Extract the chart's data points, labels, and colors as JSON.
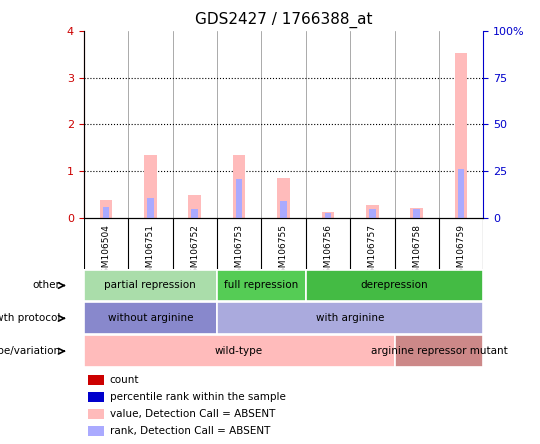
{
  "title": "GDS2427 / 1766388_at",
  "samples": [
    "GSM106504",
    "GSM106751",
    "GSM106752",
    "GSM106753",
    "GSM106755",
    "GSM106756",
    "GSM106757",
    "GSM106758",
    "GSM106759"
  ],
  "pink_bar_values": [
    0.38,
    1.35,
    0.48,
    1.35,
    0.85,
    0.12,
    0.28,
    0.2,
    3.52
  ],
  "blue_bar_values": [
    0.22,
    0.42,
    0.18,
    0.82,
    0.35,
    0.1,
    0.18,
    0.18,
    1.05
  ],
  "ylim_left": [
    0,
    4
  ],
  "ylim_right": [
    0,
    100
  ],
  "yticks_left": [
    0,
    1,
    2,
    3,
    4
  ],
  "yticks_right": [
    0,
    25,
    50,
    75,
    100
  ],
  "ytick_labels_right": [
    "0",
    "25",
    "50",
    "75",
    "100%"
  ],
  "other_groups": [
    {
      "label": "partial repression",
      "start": 0,
      "end": 3,
      "color": "#aaddaa"
    },
    {
      "label": "full repression",
      "start": 3,
      "end": 5,
      "color": "#55cc55"
    },
    {
      "label": "derepression",
      "start": 5,
      "end": 9,
      "color": "#44bb44"
    }
  ],
  "growth_groups": [
    {
      "label": "without arginine",
      "start": 0,
      "end": 3,
      "color": "#8888cc"
    },
    {
      "label": "with arginine",
      "start": 3,
      "end": 9,
      "color": "#aaaadd"
    }
  ],
  "geno_groups": [
    {
      "label": "wild-type",
      "start": 0,
      "end": 7,
      "color": "#ffbbbb"
    },
    {
      "label": "arginine repressor mutant",
      "start": 7,
      "end": 9,
      "color": "#cc8888"
    }
  ],
  "row_labels_order": [
    "other",
    "growth protocol",
    "genotype/variation"
  ],
  "legend_colors": [
    "#cc0000",
    "#0000cc",
    "#ffbbbb",
    "#aaaaff"
  ],
  "legend_labels": [
    "count",
    "percentile rank within the sample",
    "value, Detection Call = ABSENT",
    "rank, Detection Call = ABSENT"
  ],
  "pink_color": "#ffbbbb",
  "blue_color": "#aaaaff",
  "xtick_bg": "#cccccc",
  "left_axis_color": "#cc0000",
  "right_axis_color": "#0000cc"
}
